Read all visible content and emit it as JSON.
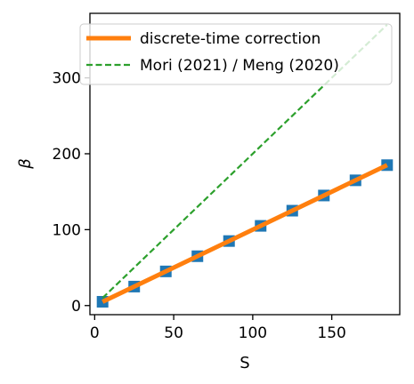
{
  "chart_data": {
    "type": "line",
    "xlabel": "S",
    "ylabel": "β",
    "xlim": [
      -3,
      193
    ],
    "ylim": [
      -12,
      385
    ],
    "xticks": [
      0,
      50,
      100,
      150
    ],
    "yticks": [
      0,
      100,
      200,
      300
    ],
    "grid": false,
    "legend_position": "top-left",
    "points": {
      "marker": "square",
      "color": "#1f77b4",
      "x": [
        5,
        25,
        45,
        65,
        85,
        105,
        125,
        145,
        165,
        185
      ],
      "y": [
        5,
        25,
        45,
        65,
        85,
        105,
        125,
        145,
        165,
        185
      ]
    },
    "series": [
      {
        "name": "discrete-time correction",
        "style": "solid",
        "color": "#ff7f0e",
        "x": [
          5,
          185
        ],
        "y": [
          5,
          185
        ]
      },
      {
        "name": "Mori (2021) / Meng (2020)",
        "style": "dashed",
        "color": "#2ca02c",
        "x": [
          5,
          185
        ],
        "y": [
          10,
          370
        ]
      }
    ]
  }
}
